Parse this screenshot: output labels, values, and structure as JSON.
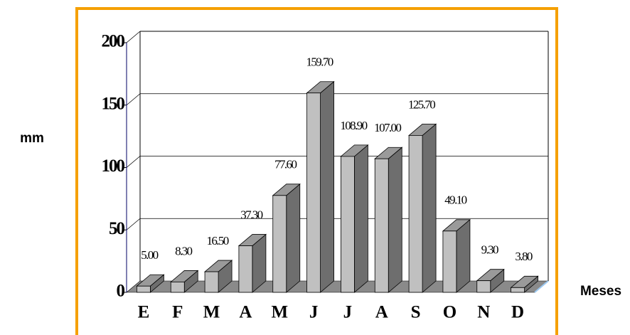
{
  "chart_data": {
    "type": "bar3d",
    "categories": [
      "E",
      "F",
      "M",
      "A",
      "M",
      "J",
      "J",
      "A",
      "S",
      "O",
      "N",
      "D"
    ],
    "values": [
      5.0,
      8.3,
      16.5,
      37.3,
      77.6,
      159.7,
      108.9,
      107.0,
      125.7,
      49.1,
      9.3,
      3.8
    ],
    "value_labels": [
      "5.00",
      "8.30",
      "16.50",
      "37.30",
      "77.60",
      "159.70",
      "108.90",
      "107.00",
      "125.70",
      "49.10",
      "9.30",
      "3.80"
    ],
    "ylabel": "mm",
    "xlabel": "Meses",
    "ylim": [
      0,
      200
    ],
    "yticks": [
      0,
      50,
      100,
      150,
      200
    ],
    "grid": true,
    "colors": {
      "front": "#c0c0c0",
      "side": "#6e6e6e",
      "top": "#9a9a9a",
      "floor": "#8a8a8a"
    }
  }
}
